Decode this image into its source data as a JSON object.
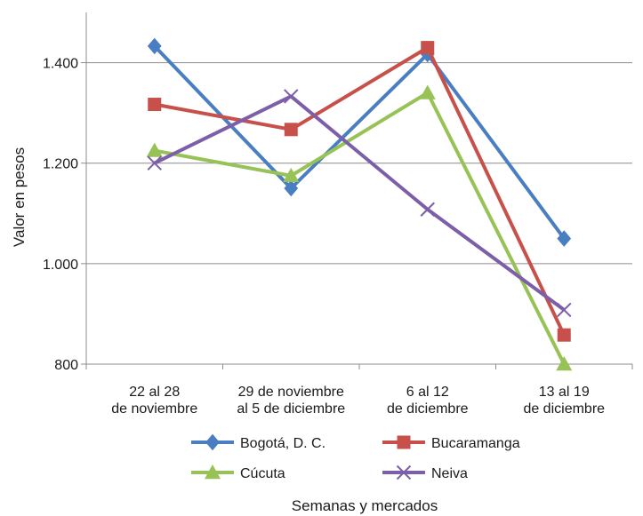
{
  "chart_data": {
    "type": "line",
    "title": "",
    "xlabel": "Semanas y mercados",
    "ylabel": "Valor en pesos",
    "ylim": [
      800,
      1500
    ],
    "yticks": [
      {
        "value": 800,
        "label": "800"
      },
      {
        "value": 1000,
        "label": "1.000"
      },
      {
        "value": 1200,
        "label": "1.200"
      },
      {
        "value": 1400,
        "label": "1.400"
      }
    ],
    "grid": "horizontal",
    "legend_placement": "bottom",
    "categories": [
      [
        "22 al 28",
        "de noviembre"
      ],
      [
        "29 de noviembre",
        "al 5 de diciembre"
      ],
      [
        "6 al 12",
        "de diciembre"
      ],
      [
        "13 al 19",
        "de diciembre"
      ]
    ],
    "series": [
      {
        "name": "Bogotá, D. C.",
        "values": [
          1433,
          1150,
          1417,
          1050
        ],
        "color": "#4a7ec2",
        "marker": "diamond"
      },
      {
        "name": "Bucaramanga",
        "values": [
          1317,
          1267,
          1430,
          858
        ],
        "color": "#c8504a",
        "marker": "square"
      },
      {
        "name": "Cúcuta",
        "values": [
          1225,
          1175,
          1340,
          800
        ],
        "color": "#96c256",
        "marker": "triangle"
      },
      {
        "name": "Neiva",
        "values": [
          1200,
          1333,
          1108,
          908
        ],
        "color": "#7c5fa8",
        "marker": "x"
      }
    ]
  }
}
